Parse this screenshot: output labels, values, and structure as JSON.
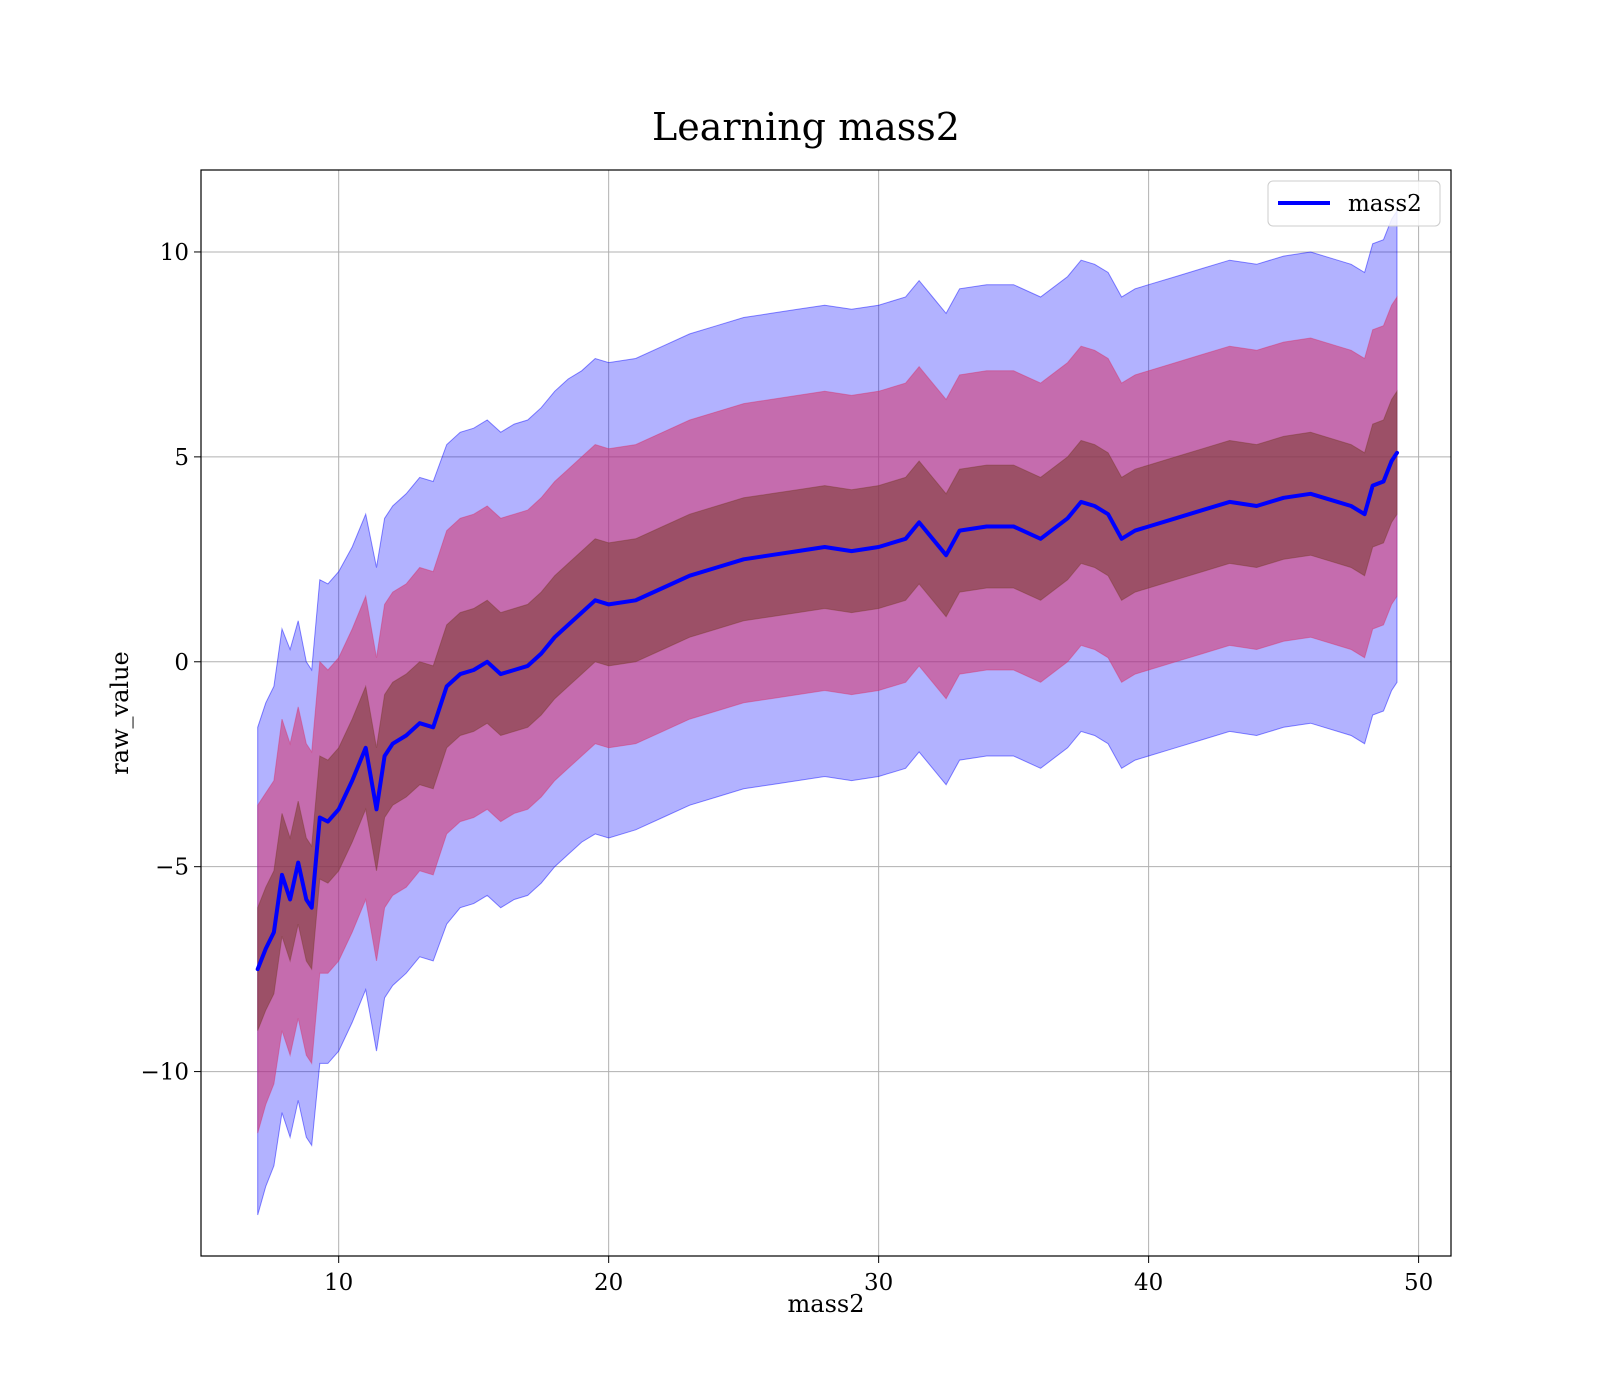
{
  "chart_data": {
    "type": "line",
    "title": "Learning mass2",
    "xlabel": "mass2",
    "ylabel": "raw_value",
    "xlim": [
      4.9,
      51.2
    ],
    "ylim": [
      -14.5,
      12.0
    ],
    "xticks": [
      10,
      20,
      30,
      40,
      50
    ],
    "yticks": [
      10,
      5,
      0,
      -5,
      -10
    ],
    "xtick_labels": [
      "10",
      "20",
      "30",
      "40",
      "50"
    ],
    "ytick_labels": [
      "10",
      "5",
      "0",
      "−5",
      "−10"
    ],
    "grid": true,
    "legend": {
      "placement": "top-right",
      "entries": [
        "mass2"
      ]
    },
    "colors": {
      "line": "#0000ff",
      "band_outer": "#0000ff",
      "band_middle": "#d6336c",
      "band_inner": "#7a3b2e"
    },
    "series": [
      {
        "name": "mass2",
        "x": [
          7.0,
          7.3,
          7.6,
          7.9,
          8.2,
          8.5,
          8.8,
          9.0,
          9.3,
          9.6,
          10.0,
          10.5,
          11.0,
          11.4,
          11.7,
          12.0,
          12.5,
          13.0,
          13.5,
          14.0,
          14.5,
          15.0,
          15.5,
          16.0,
          16.5,
          17.0,
          17.5,
          18.0,
          18.5,
          19.0,
          19.5,
          20.0,
          21.0,
          22.0,
          23.0,
          24.0,
          25.0,
          26.0,
          27.0,
          28.0,
          29.0,
          30.0,
          31.0,
          31.5,
          32.0,
          32.5,
          33.0,
          34.0,
          35.0,
          36.0,
          37.0,
          37.5,
          38.0,
          38.5,
          39.0,
          39.5,
          40.0,
          41.0,
          42.0,
          43.0,
          44.0,
          45.0,
          46.0,
          47.0,
          47.5,
          48.0,
          48.3,
          48.7,
          49.0,
          49.2
        ],
        "values": [
          -7.5,
          -7.0,
          -6.6,
          -5.2,
          -5.8,
          -4.9,
          -5.8,
          -6.0,
          -3.8,
          -3.9,
          -3.6,
          -2.9,
          -2.1,
          -3.6,
          -2.3,
          -2.0,
          -1.8,
          -1.5,
          -1.6,
          -0.6,
          -0.3,
          -0.2,
          0.0,
          -0.3,
          -0.2,
          -0.1,
          0.2,
          0.6,
          0.9,
          1.2,
          1.5,
          1.4,
          1.5,
          1.8,
          2.1,
          2.3,
          2.5,
          2.6,
          2.7,
          2.8,
          2.7,
          2.8,
          3.0,
          3.4,
          3.0,
          2.6,
          3.2,
          3.3,
          3.3,
          3.0,
          3.5,
          3.9,
          3.8,
          3.6,
          3.0,
          3.2,
          3.3,
          3.5,
          3.7,
          3.9,
          3.8,
          4.0,
          4.1,
          3.9,
          3.8,
          3.6,
          4.3,
          4.4,
          4.9,
          5.1
        ],
        "band_inner_lower": [
          -9.0,
          -8.5,
          -8.1,
          -6.7,
          -7.3,
          -6.4,
          -7.3,
          -7.5,
          -5.3,
          -5.4,
          -5.1,
          -4.4,
          -3.6,
          -5.1,
          -3.8,
          -3.5,
          -3.3,
          -3.0,
          -3.1,
          -2.1,
          -1.8,
          -1.7,
          -1.5,
          -1.8,
          -1.7,
          -1.6,
          -1.3,
          -0.9,
          -0.6,
          -0.3,
          0.0,
          -0.1,
          0.0,
          0.3,
          0.6,
          0.8,
          1.0,
          1.1,
          1.2,
          1.3,
          1.2,
          1.3,
          1.5,
          1.9,
          1.5,
          1.1,
          1.7,
          1.8,
          1.8,
          1.5,
          2.0,
          2.4,
          2.3,
          2.1,
          1.5,
          1.7,
          1.8,
          2.0,
          2.2,
          2.4,
          2.3,
          2.5,
          2.6,
          2.4,
          2.3,
          2.1,
          2.8,
          2.9,
          3.4,
          3.6
        ],
        "band_inner_upper": [
          -6.0,
          -5.5,
          -5.1,
          -3.7,
          -4.3,
          -3.4,
          -4.3,
          -4.5,
          -2.3,
          -2.4,
          -2.1,
          -1.4,
          -0.6,
          -2.1,
          -0.8,
          -0.5,
          -0.3,
          0.0,
          -0.1,
          0.9,
          1.2,
          1.3,
          1.5,
          1.2,
          1.3,
          1.4,
          1.7,
          2.1,
          2.4,
          2.7,
          3.0,
          2.9,
          3.0,
          3.3,
          3.6,
          3.8,
          4.0,
          4.1,
          4.2,
          4.3,
          4.2,
          4.3,
          4.5,
          4.9,
          4.5,
          4.1,
          4.7,
          4.8,
          4.8,
          4.5,
          5.0,
          5.4,
          5.3,
          5.1,
          4.5,
          4.7,
          4.8,
          5.0,
          5.2,
          5.4,
          5.3,
          5.5,
          5.6,
          5.4,
          5.3,
          5.1,
          5.8,
          5.9,
          6.4,
          6.6
        ],
        "band_middle_lower": [
          -11.5,
          -10.8,
          -10.3,
          -9.0,
          -9.6,
          -8.7,
          -9.6,
          -9.8,
          -7.6,
          -7.6,
          -7.3,
          -6.6,
          -5.8,
          -7.3,
          -6.0,
          -5.7,
          -5.5,
          -5.1,
          -5.2,
          -4.2,
          -3.9,
          -3.8,
          -3.6,
          -3.9,
          -3.7,
          -3.6,
          -3.3,
          -2.9,
          -2.6,
          -2.3,
          -2.0,
          -2.1,
          -2.0,
          -1.7,
          -1.4,
          -1.2,
          -1.0,
          -0.9,
          -0.8,
          -0.7,
          -0.8,
          -0.7,
          -0.5,
          -0.1,
          -0.5,
          -0.9,
          -0.3,
          -0.2,
          -0.2,
          -0.5,
          0.0,
          0.4,
          0.3,
          0.1,
          -0.5,
          -0.3,
          -0.2,
          0.0,
          0.2,
          0.4,
          0.3,
          0.5,
          0.6,
          0.4,
          0.3,
          0.1,
          0.8,
          0.9,
          1.4,
          1.6
        ],
        "band_middle_upper": [
          -3.5,
          -3.2,
          -2.9,
          -1.4,
          -2.0,
          -1.1,
          -2.0,
          -2.2,
          0.0,
          -0.2,
          0.1,
          0.8,
          1.6,
          0.1,
          1.4,
          1.7,
          1.9,
          2.3,
          2.2,
          3.2,
          3.5,
          3.6,
          3.8,
          3.5,
          3.6,
          3.7,
          4.0,
          4.4,
          4.7,
          5.0,
          5.3,
          5.2,
          5.3,
          5.6,
          5.9,
          6.1,
          6.3,
          6.4,
          6.5,
          6.6,
          6.5,
          6.6,
          6.8,
          7.2,
          6.8,
          6.4,
          7.0,
          7.1,
          7.1,
          6.8,
          7.3,
          7.7,
          7.6,
          7.4,
          6.8,
          7.0,
          7.1,
          7.3,
          7.5,
          7.7,
          7.6,
          7.8,
          7.9,
          7.7,
          7.6,
          7.4,
          8.1,
          8.2,
          8.7,
          8.9
        ],
        "band_outer_lower": [
          -13.5,
          -12.8,
          -12.3,
          -11.0,
          -11.6,
          -10.7,
          -11.6,
          -11.8,
          -9.8,
          -9.8,
          -9.5,
          -8.8,
          -8.0,
          -9.5,
          -8.2,
          -7.9,
          -7.6,
          -7.2,
          -7.3,
          -6.4,
          -6.0,
          -5.9,
          -5.7,
          -6.0,
          -5.8,
          -5.7,
          -5.4,
          -5.0,
          -4.7,
          -4.4,
          -4.2,
          -4.3,
          -4.1,
          -3.8,
          -3.5,
          -3.3,
          -3.1,
          -3.0,
          -2.9,
          -2.8,
          -2.9,
          -2.8,
          -2.6,
          -2.2,
          -2.6,
          -3.0,
          -2.4,
          -2.3,
          -2.3,
          -2.6,
          -2.1,
          -1.7,
          -1.8,
          -2.0,
          -2.6,
          -2.4,
          -2.3,
          -2.1,
          -1.9,
          -1.7,
          -1.8,
          -1.6,
          -1.5,
          -1.7,
          -1.8,
          -2.0,
          -1.3,
          -1.2,
          -0.7,
          -0.5
        ],
        "band_outer_upper": [
          -1.6,
          -1.0,
          -0.6,
          0.8,
          0.3,
          1.0,
          0.0,
          -0.2,
          2.0,
          1.9,
          2.2,
          2.8,
          3.6,
          2.3,
          3.5,
          3.8,
          4.1,
          4.5,
          4.4,
          5.3,
          5.6,
          5.7,
          5.9,
          5.6,
          5.8,
          5.9,
          6.2,
          6.6,
          6.9,
          7.1,
          7.4,
          7.3,
          7.4,
          7.7,
          8.0,
          8.2,
          8.4,
          8.5,
          8.6,
          8.7,
          8.6,
          8.7,
          8.9,
          9.3,
          8.9,
          8.5,
          9.1,
          9.2,
          9.2,
          8.9,
          9.4,
          9.8,
          9.7,
          9.5,
          8.9,
          9.1,
          9.2,
          9.4,
          9.6,
          9.8,
          9.7,
          9.9,
          10.0,
          9.8,
          9.7,
          9.5,
          10.2,
          10.3,
          10.8,
          11.0
        ]
      }
    ]
  }
}
